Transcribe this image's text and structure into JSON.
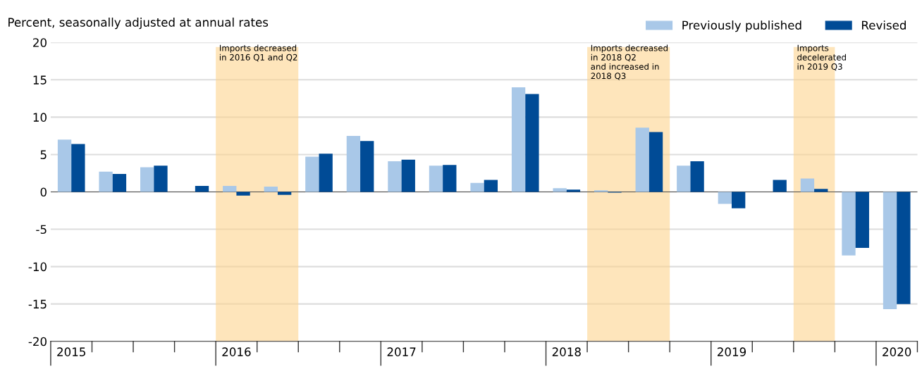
{
  "chart_data": {
    "type": "bar",
    "ylabel": "Percent, seasonally adjusted at annual rates",
    "categories": [
      "2015",
      null,
      null,
      null,
      "2016",
      null,
      null,
      null,
      "2017",
      null,
      null,
      null,
      "2018",
      null,
      null,
      null,
      "2019",
      null,
      null,
      null,
      "2020"
    ],
    "series": [
      {
        "name": "Previously published",
        "color": "#a9c8e8",
        "values": [
          7.0,
          2.7,
          3.3,
          0,
          0.8,
          0.7,
          4.7,
          7.5,
          4.1,
          3.5,
          1.2,
          14.0,
          0.5,
          0.2,
          8.6,
          3.5,
          -1.6,
          0,
          1.8,
          -8.5,
          -15.7
        ]
      },
      {
        "name": "Revised",
        "color": "#004b96",
        "values": [
          6.4,
          2.4,
          3.5,
          0.8,
          -0.5,
          -0.4,
          5.1,
          6.8,
          4.3,
          3.6,
          1.6,
          13.1,
          0.3,
          -0.1,
          8.0,
          4.1,
          -2.2,
          1.6,
          0.4,
          -7.5,
          -15.0
        ]
      }
    ],
    "ylim": [
      -20,
      20
    ],
    "yticks": [
      -20,
      -15,
      -10,
      -5,
      0,
      5,
      10,
      15,
      20
    ],
    "grid": "y",
    "legend": "top right",
    "ref_lines": [
      {
        "axis": "y",
        "value": 0,
        "color": "#555555"
      }
    ],
    "annotations": [
      "Imports decreased\nin 2016 Q1 and Q2",
      "Imports decreased\nin 2018 Q2\nand increased in\n2018 Q3",
      "Imports\ndecelerated\nin 2019 Q3"
    ]
  }
}
